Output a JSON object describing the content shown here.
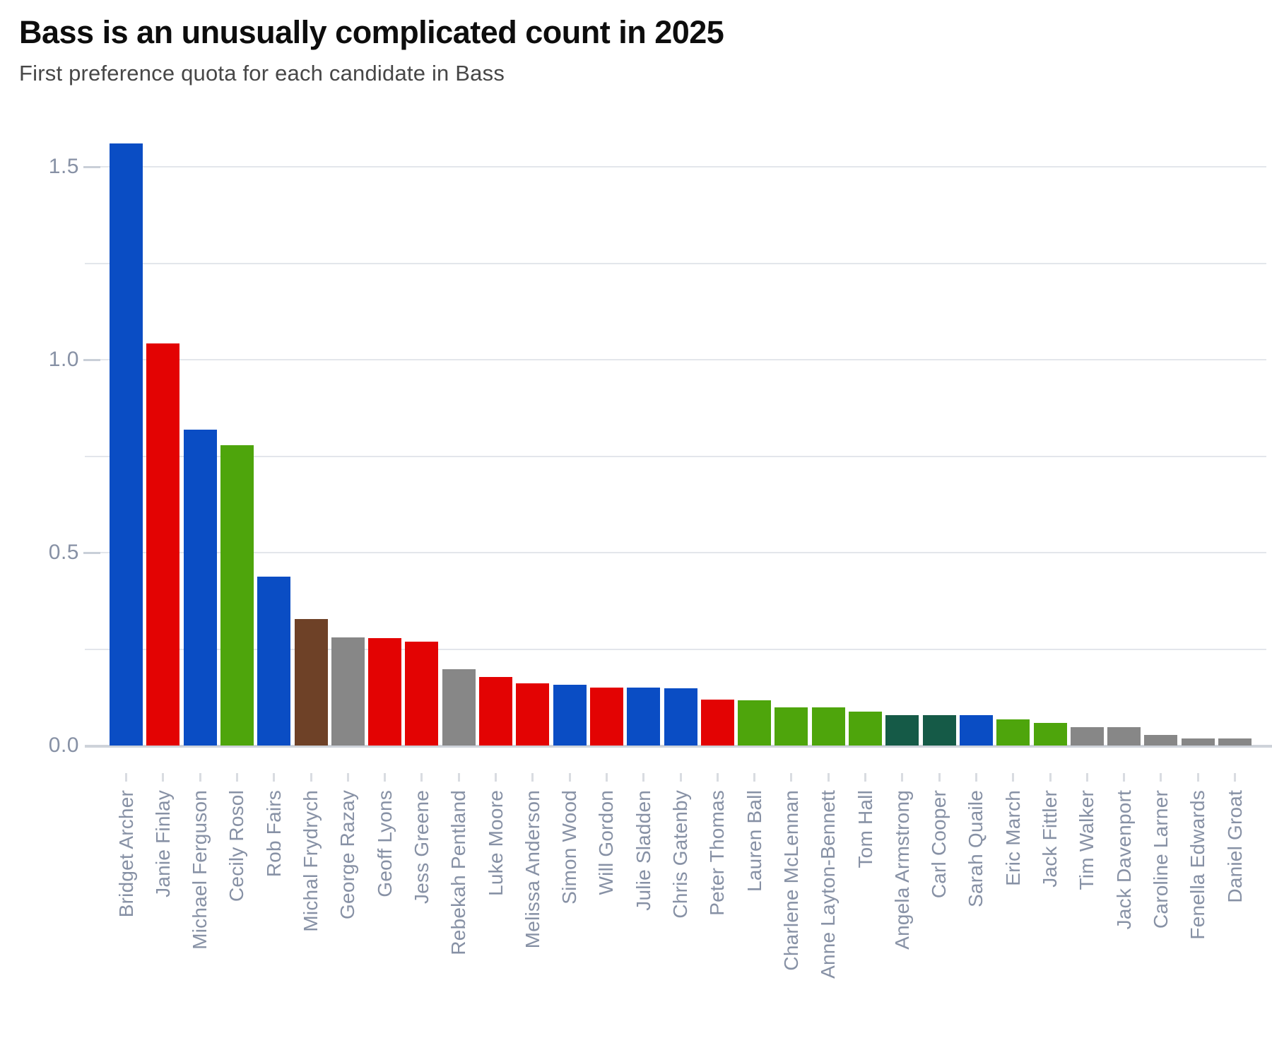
{
  "header": {
    "title": "Bass is an unusually complicated count in 2025",
    "subtitle": "First preference quota for each candidate in Bass"
  },
  "chart_data": {
    "type": "bar",
    "title": "Bass is an unusually complicated count in 2025",
    "subtitle": "First preference quota for each candidate in Bass",
    "categories": [
      "Bridget Archer",
      "Janie Finlay",
      "Michael Ferguson",
      "Cecily Rosol",
      "Rob Fairs",
      "Michal Frydrych",
      "George Razay",
      "Geoff Lyons",
      "Jess Greene",
      "Rebekah Pentland",
      "Luke Moore",
      "Melissa Anderson",
      "Simon Wood",
      "Will Gordon",
      "Julie Sladden",
      "Chris Gatenby",
      "Peter Thomas",
      "Lauren Ball",
      "Charlene McLennan",
      "Anne Layton-Bennett",
      "Tom Hall",
      "Angela Armstrong",
      "Carl Cooper",
      "Sarah Quaile",
      "Eric March",
      "Jack Fittler",
      "Tim Walker",
      "Jack Davenport",
      "Caroline Larner",
      "Fenella Edwards",
      "Daniel Groat"
    ],
    "values": [
      1.561,
      1.043,
      0.819,
      0.778,
      0.438,
      0.328,
      0.281,
      0.278,
      0.27,
      0.197,
      0.178,
      0.161,
      0.158,
      0.15,
      0.15,
      0.149,
      0.119,
      0.118,
      0.099,
      0.099,
      0.087,
      0.078,
      0.078,
      0.078,
      0.068,
      0.058,
      0.048,
      0.048,
      0.027,
      0.018,
      0.018
    ],
    "bar_colors": [
      "blue",
      "red",
      "blue",
      "green",
      "blue",
      "brown",
      "gray",
      "red",
      "red",
      "gray",
      "red",
      "red",
      "blue",
      "red",
      "blue",
      "blue",
      "red",
      "green",
      "green",
      "green",
      "green",
      "dark_green",
      "dark_green",
      "blue",
      "green",
      "green",
      "gray",
      "gray",
      "gray",
      "gray",
      "gray"
    ],
    "palette": {
      "blue": "#0a4dc4",
      "red": "#e30303",
      "green": "#4ea50c",
      "brown": "#6e4127",
      "gray": "#878787",
      "dark_green": "#155a47"
    },
    "xlabel": "",
    "ylabel": "",
    "y_axis": {
      "tick_labels": [
        "0.0",
        "0.5",
        "1.0",
        "1.5"
      ],
      "tick_values": [
        0,
        0.5,
        1.0,
        1.5
      ],
      "gridline_step": 0.25,
      "range": [
        0,
        1.62
      ]
    },
    "legend": "none",
    "grid": true
  },
  "colors": {
    "background": "#ffffff",
    "title_text": "#0d0d0d",
    "subtitle_text": "#474747",
    "axis_text": "#8791a5",
    "gridline": "#e3e6eb",
    "baseline": "#ced3da",
    "tick": "#d9dce1"
  }
}
